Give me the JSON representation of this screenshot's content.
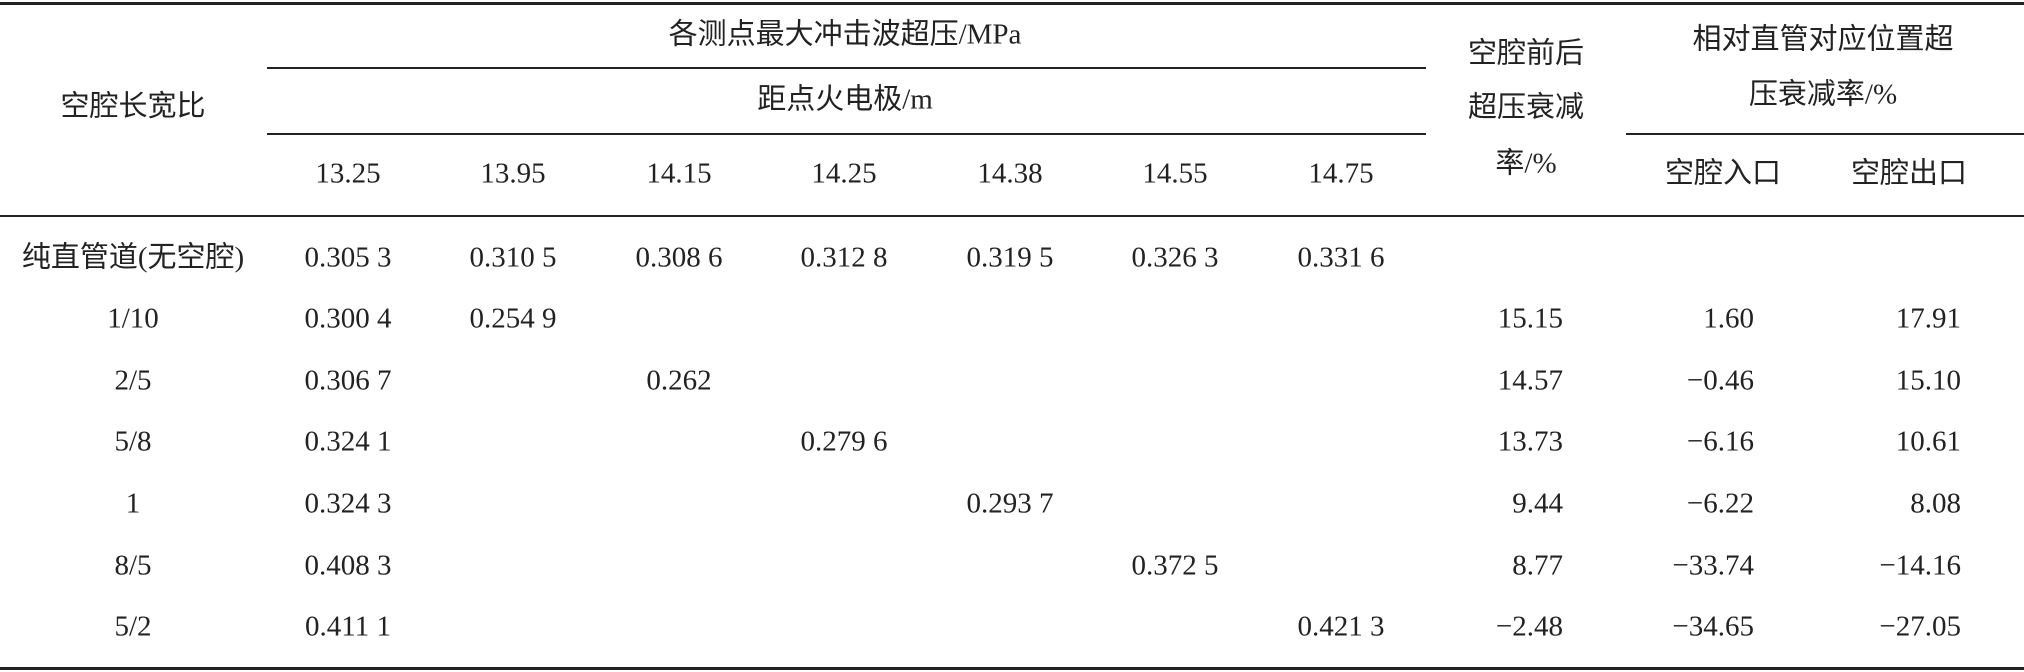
{
  "header": {
    "group_title": "各测点最大冲击波超压/MPa",
    "distance_label": "距点火电极/m",
    "row_label": "空腔长宽比",
    "distances": [
      "13.25",
      "13.95",
      "14.15",
      "14.25",
      "14.38",
      "14.55",
      "14.75"
    ],
    "attenuation_title_lines": [
      "空腔前后",
      "超压衰减",
      "率/%"
    ],
    "relative_title_lines": [
      "相对直管对应位置超",
      "压衰减率/%"
    ],
    "relative_columns": [
      "空腔入口",
      "空腔出口"
    ]
  },
  "rows": [
    {
      "label": "纯直管道(无空腔)",
      "cells": [
        "0.305 3",
        "0.310 5",
        "0.308 6",
        "0.312 8",
        "0.319 5",
        "0.326 3",
        "0.331 6"
      ],
      "attenuation": null,
      "inlet": null,
      "outlet": null
    },
    {
      "label": "1/10",
      "cells": [
        "0.300 4",
        "0.254 9",
        null,
        null,
        null,
        null,
        null
      ],
      "attenuation": "15.15",
      "inlet": "1.60",
      "outlet": "17.91"
    },
    {
      "label": "2/5",
      "cells": [
        "0.306 7",
        null,
        "0.262",
        null,
        null,
        null,
        null
      ],
      "attenuation": "14.57",
      "inlet": "−0.46",
      "outlet": "15.10"
    },
    {
      "label": "5/8",
      "cells": [
        "0.324 1",
        null,
        null,
        "0.279 6",
        null,
        null,
        null
      ],
      "attenuation": "13.73",
      "inlet": "−6.16",
      "outlet": "10.61"
    },
    {
      "label": "1",
      "cells": [
        "0.324 3",
        null,
        null,
        null,
        "0.293 7",
        null,
        null
      ],
      "attenuation": "9.44",
      "inlet": "−6.22",
      "outlet": "8.08"
    },
    {
      "label": "8/5",
      "cells": [
        "0.408 3",
        null,
        null,
        null,
        null,
        "0.372 5",
        null
      ],
      "attenuation": "8.77",
      "inlet": "−33.74",
      "outlet": "−14.16"
    },
    {
      "label": "5/2",
      "cells": [
        "0.411 1",
        null,
        null,
        null,
        null,
        null,
        "0.421 3"
      ],
      "attenuation": "−2.48",
      "inlet": "−34.65",
      "outlet": "−27.05"
    }
  ]
}
